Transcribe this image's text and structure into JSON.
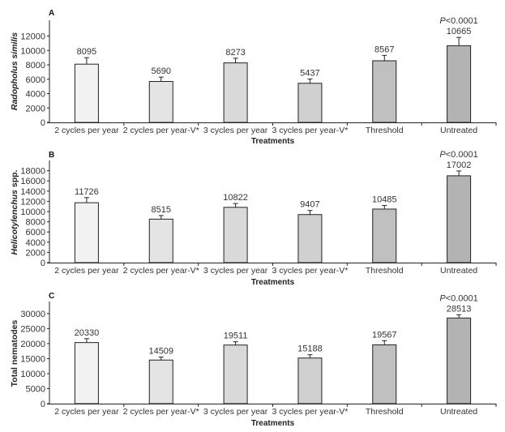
{
  "chart_data": [
    {
      "type": "bar",
      "panel": "A",
      "title": "",
      "xlabel": "Treatments",
      "ylabel": "Radopholus similis",
      "ylabel_italic": true,
      "categories": [
        "2 cycles per year",
        "2 cycles per year-V*",
        "3 cycles per year",
        "3 cycles per year-V*",
        "Threshold",
        "Untreated"
      ],
      "values": [
        8095,
        5690,
        8273,
        5437,
        8567,
        10665
      ],
      "value_labels": [
        "8095",
        "5690",
        "8273",
        "5437",
        "8567",
        "10665"
      ],
      "errors": [
        900,
        600,
        650,
        600,
        750,
        1150
      ],
      "yticks": [
        0,
        2000,
        4000,
        6000,
        8000,
        10000,
        12000
      ],
      "ytick_labels": [
        "0",
        "2000",
        "4000",
        "6000",
        "8000",
        "10000",
        "12000"
      ],
      "ylim": [
        0,
        14200
      ],
      "annotation": {
        "prefix": "P",
        "text": "<0.0001",
        "category_index": 5
      },
      "grid": false,
      "colors": [
        "#f2f2f2",
        "#e4e4e4",
        "#d9d9d9",
        "#d0d0d0",
        "#c0c0c0",
        "#b3b3b3"
      ]
    },
    {
      "type": "bar",
      "panel": "B",
      "title": "",
      "xlabel": "Treatments",
      "ylabel": "Helicotylenchus spp.",
      "ylabel_italic_part": "Helicotylenchus",
      "ylabel_plain_part": " spp.",
      "categories": [
        "2 cycles per year",
        "2 cycles per year-V*",
        "3 cycles per year",
        "3 cycles per year-V*",
        "Threshold",
        "Untreated"
      ],
      "values": [
        11726,
        8515,
        10822,
        9407,
        10485,
        17002
      ],
      "value_labels": [
        "11726",
        "8515",
        "10822",
        "9407",
        "10485",
        "17002"
      ],
      "errors": [
        1000,
        700,
        750,
        800,
        700,
        950
      ],
      "yticks": [
        0,
        2000,
        4000,
        6000,
        8000,
        10000,
        12000,
        14000,
        16000,
        18000
      ],
      "ytick_labels": [
        "0",
        "2000",
        "4000",
        "6000",
        "8000",
        "10000",
        "12000",
        "14000",
        "16000",
        "18000"
      ],
      "ylim": [
        0,
        20000
      ],
      "annotation": {
        "prefix": "P",
        "text": "<0.0001",
        "category_index": 5
      },
      "grid": false,
      "colors": [
        "#f2f2f2",
        "#e4e4e4",
        "#d9d9d9",
        "#d0d0d0",
        "#c0c0c0",
        "#b3b3b3"
      ]
    },
    {
      "type": "bar",
      "panel": "C",
      "title": "",
      "xlabel": "Treatments",
      "ylabel": "Total nematodes",
      "categories": [
        "2 cycles per year",
        "2 cycles per year-V*",
        "3 cycles per year",
        "3 cycles per year-V*",
        "Threshold",
        "Untreated"
      ],
      "values": [
        20330,
        14509,
        19511,
        15188,
        19567,
        28513
      ],
      "value_labels": [
        "20330",
        "14509",
        "19511",
        "15188",
        "19567",
        "28513"
      ],
      "errors": [
        1300,
        1000,
        1100,
        1100,
        1400,
        1100
      ],
      "yticks": [
        0,
        5000,
        10000,
        15000,
        20000,
        25000,
        30000
      ],
      "ytick_labels": [
        "0",
        "5000",
        "10000",
        "15000",
        "20000",
        "25000",
        "30000"
      ],
      "ylim": [
        0,
        34000
      ],
      "annotation": {
        "prefix": "P",
        "text": "<0.0001",
        "category_index": 5
      },
      "grid": false,
      "colors": [
        "#f2f2f2",
        "#e4e4e4",
        "#d9d9d9",
        "#d0d0d0",
        "#c0c0c0",
        "#b3b3b3"
      ]
    }
  ]
}
